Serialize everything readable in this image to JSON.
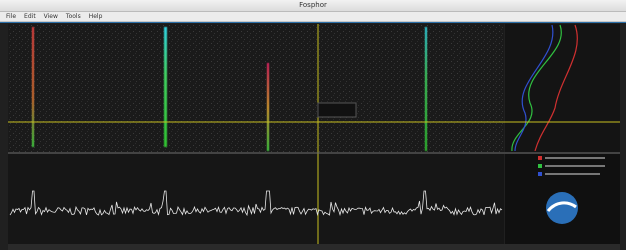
{
  "window": {
    "title": "Fosphor",
    "menu": [
      "File",
      "Edit",
      "View",
      "Tools",
      "Help"
    ]
  }
}
